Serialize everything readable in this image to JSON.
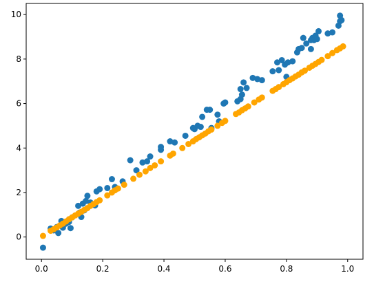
{
  "chart_data": {
    "type": "scatter",
    "title": "",
    "xlabel": "",
    "ylabel": "",
    "xlim": [
      -0.05,
      1.05
    ],
    "ylim": [
      -1,
      10.5
    ],
    "grid": false,
    "xticks": [
      0.0,
      0.2,
      0.4,
      0.6,
      0.8,
      1.0
    ],
    "xtick_labels": [
      "0.0",
      "0.2",
      "0.4",
      "0.6",
      "0.8",
      "1.0"
    ],
    "yticks": [
      0,
      2,
      4,
      6,
      8,
      10
    ],
    "ytick_labels": [
      "0",
      "2",
      "4",
      "6",
      "8",
      "10"
    ],
    "series": [
      {
        "color": "#1f77b4",
        "points": [
          [
            0.005,
            -0.48
          ],
          [
            0.03,
            0.38
          ],
          [
            0.04,
            0.3
          ],
          [
            0.05,
            0.45
          ],
          [
            0.055,
            0.18
          ],
          [
            0.065,
            0.72
          ],
          [
            0.07,
            0.42
          ],
          [
            0.08,
            0.6
          ],
          [
            0.09,
            0.68
          ],
          [
            0.095,
            0.4
          ],
          [
            0.1,
            0.88
          ],
          [
            0.12,
            1.4
          ],
          [
            0.125,
            1.1
          ],
          [
            0.13,
            0.9
          ],
          [
            0.135,
            1.5
          ],
          [
            0.14,
            1.2
          ],
          [
            0.145,
            1.62
          ],
          [
            0.15,
            1.85
          ],
          [
            0.16,
            1.55
          ],
          [
            0.175,
            1.42
          ],
          [
            0.18,
            2.05
          ],
          [
            0.19,
            2.15
          ],
          [
            0.215,
            2.2
          ],
          [
            0.23,
            2.6
          ],
          [
            0.24,
            2.25
          ],
          [
            0.265,
            2.5
          ],
          [
            0.29,
            3.45
          ],
          [
            0.31,
            3.0
          ],
          [
            0.33,
            3.35
          ],
          [
            0.345,
            3.4
          ],
          [
            0.355,
            3.62
          ],
          [
            0.39,
            3.92
          ],
          [
            0.39,
            4.05
          ],
          [
            0.42,
            4.3
          ],
          [
            0.435,
            4.25
          ],
          [
            0.47,
            4.55
          ],
          [
            0.495,
            4.9
          ],
          [
            0.5,
            4.85
          ],
          [
            0.51,
            5.0
          ],
          [
            0.52,
            4.95
          ],
          [
            0.525,
            5.4
          ],
          [
            0.54,
            5.72
          ],
          [
            0.55,
            5.72
          ],
          [
            0.555,
            4.9
          ],
          [
            0.575,
            5.5
          ],
          [
            0.58,
            5.2
          ],
          [
            0.595,
            6.0
          ],
          [
            0.6,
            6.05
          ],
          [
            0.64,
            6.1
          ],
          [
            0.65,
            6.65
          ],
          [
            0.65,
            6.2
          ],
          [
            0.655,
            6.4
          ],
          [
            0.66,
            6.95
          ],
          [
            0.67,
            6.7
          ],
          [
            0.69,
            7.15
          ],
          [
            0.705,
            7.1
          ],
          [
            0.72,
            7.05
          ],
          [
            0.755,
            7.45
          ],
          [
            0.77,
            7.85
          ],
          [
            0.775,
            7.5
          ],
          [
            0.785,
            7.95
          ],
          [
            0.795,
            7.75
          ],
          [
            0.8,
            7.2
          ],
          [
            0.805,
            7.85
          ],
          [
            0.82,
            7.9
          ],
          [
            0.835,
            8.3
          ],
          [
            0.84,
            8.45
          ],
          [
            0.85,
            8.5
          ],
          [
            0.855,
            8.95
          ],
          [
            0.865,
            8.7
          ],
          [
            0.88,
            8.45
          ],
          [
            0.88,
            8.85
          ],
          [
            0.885,
            8.95
          ],
          [
            0.89,
            8.85
          ],
          [
            0.895,
            9.05
          ],
          [
            0.9,
            8.9
          ],
          [
            0.905,
            9.25
          ],
          [
            0.935,
            9.15
          ],
          [
            0.95,
            9.2
          ],
          [
            0.97,
            9.5
          ],
          [
            0.975,
            9.7
          ],
          [
            0.975,
            9.95
          ],
          [
            0.98,
            9.75
          ]
        ]
      },
      {
        "color": "#ffa500",
        "points": [
          [
            0.005,
            0.05
          ],
          [
            0.03,
            0.28
          ],
          [
            0.04,
            0.35
          ],
          [
            0.05,
            0.43
          ],
          [
            0.06,
            0.52
          ],
          [
            0.07,
            0.6
          ],
          [
            0.08,
            0.7
          ],
          [
            0.09,
            0.8
          ],
          [
            0.1,
            0.88
          ],
          [
            0.11,
            0.97
          ],
          [
            0.12,
            1.05
          ],
          [
            0.13,
            1.13
          ],
          [
            0.14,
            1.22
          ],
          [
            0.15,
            1.3
          ],
          [
            0.16,
            1.4
          ],
          [
            0.17,
            1.48
          ],
          [
            0.18,
            1.57
          ],
          [
            0.19,
            1.65
          ],
          [
            0.215,
            1.87
          ],
          [
            0.23,
            2.0
          ],
          [
            0.24,
            2.1
          ],
          [
            0.25,
            2.18
          ],
          [
            0.27,
            2.35
          ],
          [
            0.3,
            2.62
          ],
          [
            0.32,
            2.8
          ],
          [
            0.34,
            2.95
          ],
          [
            0.355,
            3.1
          ],
          [
            0.37,
            3.22
          ],
          [
            0.39,
            3.4
          ],
          [
            0.42,
            3.66
          ],
          [
            0.43,
            3.75
          ],
          [
            0.46,
            4.0
          ],
          [
            0.48,
            4.18
          ],
          [
            0.495,
            4.3
          ],
          [
            0.505,
            4.4
          ],
          [
            0.515,
            4.48
          ],
          [
            0.525,
            4.57
          ],
          [
            0.535,
            4.65
          ],
          [
            0.545,
            4.75
          ],
          [
            0.555,
            4.83
          ],
          [
            0.575,
            5.0
          ],
          [
            0.59,
            5.13
          ],
          [
            0.6,
            5.22
          ],
          [
            0.635,
            5.53
          ],
          [
            0.645,
            5.6
          ],
          [
            0.655,
            5.7
          ],
          [
            0.665,
            5.78
          ],
          [
            0.675,
            5.87
          ],
          [
            0.695,
            6.05
          ],
          [
            0.71,
            6.18
          ],
          [
            0.72,
            6.27
          ],
          [
            0.755,
            6.57
          ],
          [
            0.765,
            6.65
          ],
          [
            0.775,
            6.74
          ],
          [
            0.79,
            6.87
          ],
          [
            0.8,
            6.96
          ],
          [
            0.81,
            7.05
          ],
          [
            0.82,
            7.13
          ],
          [
            0.83,
            7.22
          ],
          [
            0.84,
            7.3
          ],
          [
            0.85,
            7.4
          ],
          [
            0.86,
            7.48
          ],
          [
            0.875,
            7.61
          ],
          [
            0.885,
            7.7
          ],
          [
            0.895,
            7.78
          ],
          [
            0.905,
            7.87
          ],
          [
            0.915,
            7.96
          ],
          [
            0.935,
            8.13
          ],
          [
            0.95,
            8.27
          ],
          [
            0.965,
            8.4
          ],
          [
            0.975,
            8.48
          ],
          [
            0.985,
            8.57
          ]
        ]
      }
    ]
  }
}
